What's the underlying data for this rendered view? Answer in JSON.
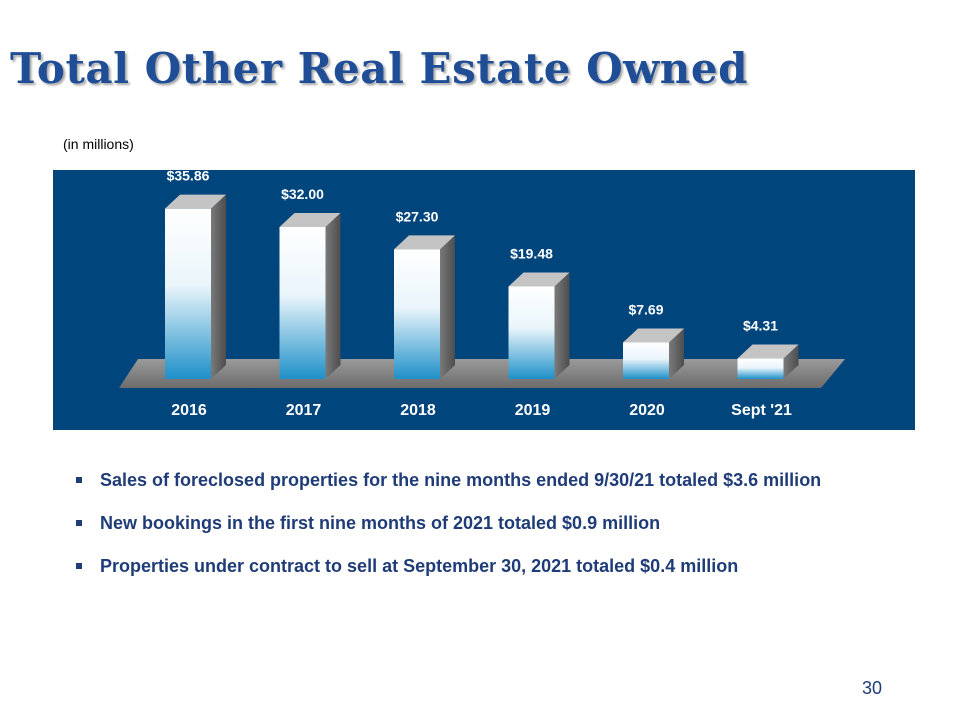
{
  "slide": {
    "title": "Total Other Real Estate Owned",
    "units_note": "(in millions)",
    "page_number": "30",
    "bullets": [
      "Sales of foreclosed properties for the nine months ended 9/30/21 totaled $3.6 million",
      "New bookings in the first nine months of 2021 totaled $0.9 million",
      "Properties under contract to sell at September 30, 2021 totaled $0.4 million"
    ]
  },
  "colors": {
    "panel": "#00457c",
    "title": "#1f4e96",
    "bullet_text": "#1f3c78",
    "bar_top": "#ffffff",
    "bar_bottom": "#1e90c8"
  },
  "chart_data": {
    "type": "bar",
    "style": "3d",
    "categories": [
      "2016",
      "2017",
      "2018",
      "2019",
      "2020",
      "Sept '21"
    ],
    "values": [
      35.86,
      32.0,
      27.3,
      19.48,
      7.69,
      4.31
    ],
    "data_labels": [
      "$35.86",
      "$32.00",
      "$27.30",
      "$19.48",
      "$7.69",
      "$4.31"
    ],
    "title": "",
    "xlabel": "",
    "ylabel": "",
    "ylim": [
      0,
      40
    ],
    "grid": false,
    "legend": "none"
  }
}
